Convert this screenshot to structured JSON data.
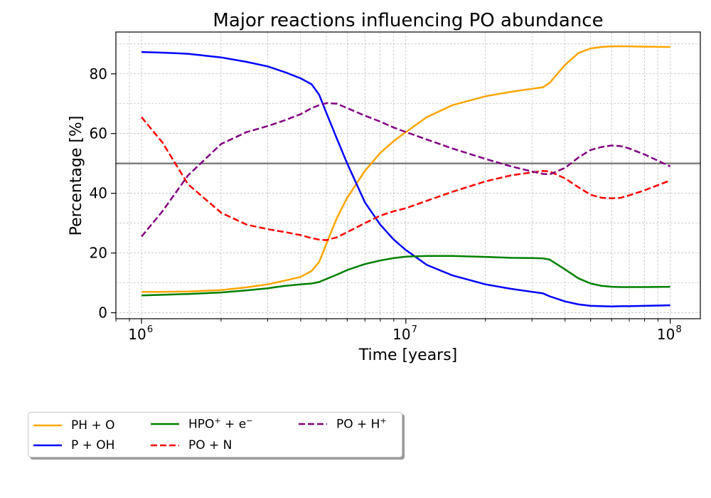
{
  "chart_data": {
    "type": "line",
    "title": "Major reactions influencing PO abundance",
    "xlabel": "Time [years]",
    "ylabel": "Percentage [%]",
    "xscale": "log",
    "xlim": [
      800000,
      130000000
    ],
    "ylim": [
      -2,
      94
    ],
    "x_ticks": [
      {
        "value": 1000000,
        "base": "10",
        "exp": "6"
      },
      {
        "value": 10000000,
        "base": "10",
        "exp": "7"
      },
      {
        "value": 100000000,
        "base": "10",
        "exp": "8"
      }
    ],
    "y_ticks": [
      {
        "value": 0,
        "label": "0"
      },
      {
        "value": 20,
        "label": "20"
      },
      {
        "value": 40,
        "label": "40"
      },
      {
        "value": 60,
        "label": "60"
      },
      {
        "value": 80,
        "label": "80"
      }
    ],
    "grid": "both (major and minor, dashed)",
    "reference_line": {
      "y": 50,
      "color": "#808080"
    },
    "legend_position": "below plot, left",
    "x": [
      1000000,
      1200000,
      1500000,
      2000000,
      2500000,
      3000000,
      3500000,
      4000000,
      4400000,
      4700000,
      5000000,
      5500000,
      6000000,
      7000000,
      8000000,
      9000000,
      10000000,
      12000000,
      15000000,
      20000000,
      25000000,
      30000000,
      33000000,
      35000000,
      40000000,
      45000000,
      50000000,
      55000000,
      60000000,
      65000000,
      70000000,
      80000000,
      100000000
    ],
    "series": [
      {
        "name": "PH + O",
        "label_main": "PH + O",
        "label_sup": "",
        "label_tail": "",
        "color": "#ffa500",
        "dash": "solid",
        "values": [
          7,
          7,
          7.1,
          7.6,
          8.5,
          9.5,
          10.8,
          12,
          14,
          17,
          23,
          32,
          38.5,
          47.5,
          53.5,
          57.5,
          60.5,
          65.5,
          69.5,
          72.5,
          74,
          75,
          75.5,
          77,
          83,
          87,
          88.5,
          89,
          89.2,
          89.2,
          89.2,
          89.1,
          89
        ]
      },
      {
        "name": "P + OH",
        "label_main": "P + OH",
        "label_sup": "",
        "label_tail": "",
        "color": "#0000ff",
        "dash": "solid",
        "values": [
          87.3,
          87.1,
          86.7,
          85.5,
          84,
          82.5,
          80.5,
          78.5,
          76.5,
          73,
          67,
          58,
          50,
          37,
          29.5,
          24.5,
          21,
          16,
          12.5,
          9.5,
          8,
          7,
          6.5,
          5.5,
          3.8,
          2.8,
          2.3,
          2.2,
          2.1,
          2.2,
          2.2,
          2.3,
          2.5
        ]
      },
      {
        "name": "HPO+ + e-",
        "label_main": "HPO",
        "label_sup": "+",
        "label_tail": " + e",
        "label_sup2": "−",
        "color": "#008000",
        "dash": "solid",
        "values": [
          5.8,
          6,
          6.3,
          6.8,
          7.5,
          8.2,
          9,
          9.5,
          9.8,
          10.3,
          11.3,
          12.8,
          14.3,
          16.3,
          17.5,
          18.3,
          18.8,
          19,
          19,
          18.7,
          18.4,
          18.3,
          18.2,
          17.8,
          14.5,
          11.5,
          9.8,
          9,
          8.7,
          8.6,
          8.6,
          8.6,
          8.7
        ]
      },
      {
        "name": "PO + N",
        "label_main": "PO + N",
        "label_sup": "",
        "label_tail": "",
        "color": "#ff0000",
        "dash": "dashed",
        "values": [
          65.5,
          57,
          43,
          33.5,
          29.5,
          28,
          27,
          26,
          25,
          24.5,
          24.3,
          25.3,
          27,
          30,
          32.5,
          34,
          35,
          37.5,
          40.5,
          44,
          46,
          47,
          47.5,
          47.3,
          45,
          42,
          39.5,
          38.5,
          38.3,
          38.5,
          39.3,
          41,
          44.3
        ]
      },
      {
        "name": "PO + H+",
        "label_main": "PO + H",
        "label_sup": "+",
        "label_tail": "",
        "color": "#800080",
        "dash": "dashed",
        "values": [
          25.5,
          34,
          46,
          56.5,
          60.5,
          62.5,
          64.5,
          66.5,
          68.5,
          69.5,
          70.2,
          70,
          68.5,
          66,
          64,
          62,
          60.5,
          58,
          55,
          51.5,
          49,
          47.3,
          46.5,
          46.3,
          48.5,
          52,
          54.5,
          55.5,
          56,
          55.8,
          55,
          53,
          49
        ]
      }
    ]
  }
}
